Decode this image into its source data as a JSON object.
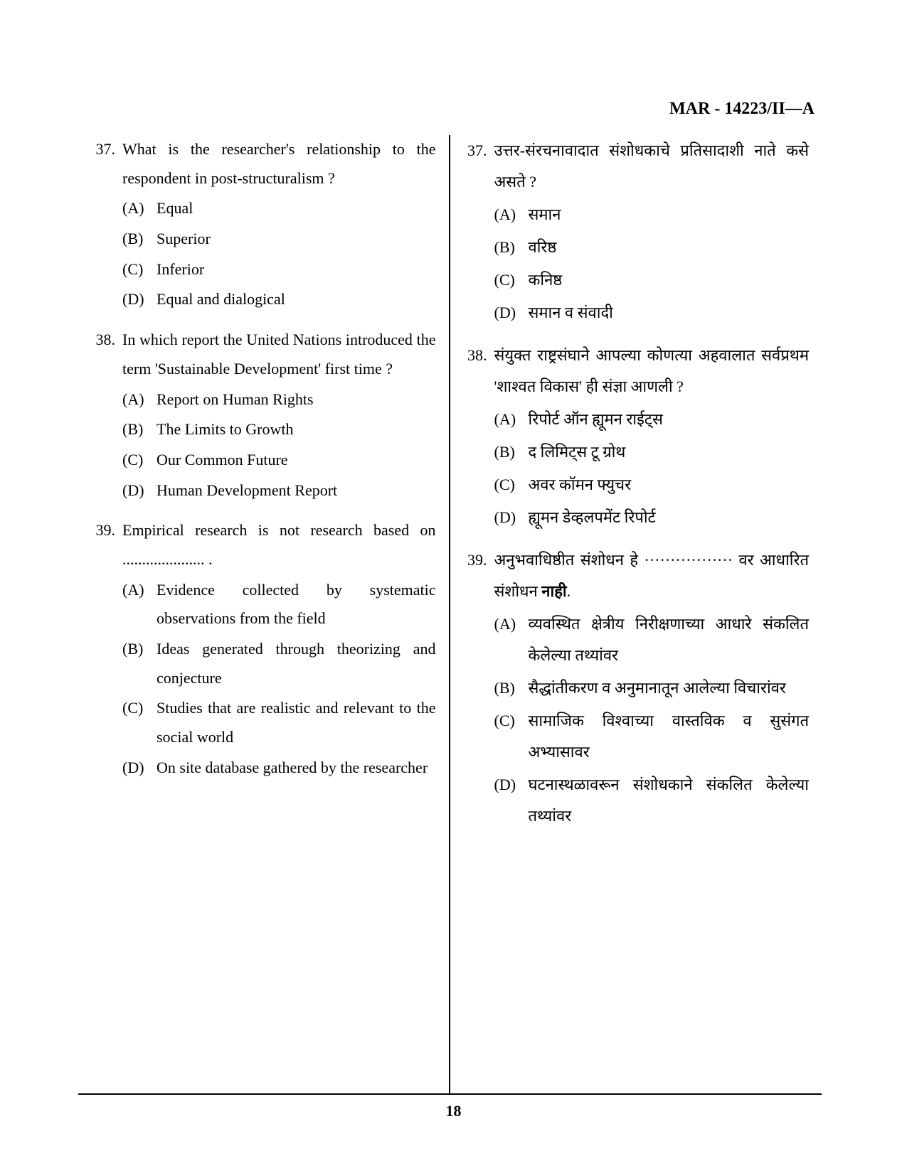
{
  "header_code": "MAR - 14223/II—A",
  "page_number": "18",
  "left_column": {
    "questions": [
      {
        "number": "37.",
        "text": "What is the researcher's relationship to the respondent in post-structuralism ?",
        "options": [
          {
            "label": "(A)",
            "text": "Equal"
          },
          {
            "label": "(B)",
            "text": "Superior"
          },
          {
            "label": "(C)",
            "text": "Inferior"
          },
          {
            "label": "(D)",
            "text": "Equal and dialogical"
          }
        ]
      },
      {
        "number": "38.",
        "text": "In which report the United Nations introduced the term 'Sustainable Development' first time ?",
        "options": [
          {
            "label": "(A)",
            "text": "Report on Human Rights"
          },
          {
            "label": "(B)",
            "text": "The Limits to Growth"
          },
          {
            "label": "(C)",
            "text": "Our Common Future"
          },
          {
            "label": "(D)",
            "text": "Human Development Report"
          }
        ]
      },
      {
        "number": "39.",
        "text_pre": "Empirical research is not research based on",
        "text_post": ".",
        "has_blank": true,
        "options": [
          {
            "label": "(A)",
            "text": "Evidence collected by systematic observations from the field"
          },
          {
            "label": "(B)",
            "text": "Ideas generated through theorizing and conjecture"
          },
          {
            "label": "(C)",
            "text": "Studies that are realistic and relevant to the social world"
          },
          {
            "label": "(D)",
            "text": "On site database gathered by the researcher"
          }
        ]
      }
    ]
  },
  "right_column": {
    "questions": [
      {
        "number": "37.",
        "text": "उत्तर-संरचनावादात संशोधकाचे प्रतिसादाशी नाते कसे असते ?",
        "options": [
          {
            "label": "(A)",
            "text": "समान"
          },
          {
            "label": "(B)",
            "text": "वरिष्ठ"
          },
          {
            "label": "(C)",
            "text": "कनिष्ठ"
          },
          {
            "label": "(D)",
            "text": "समान व संवादी"
          }
        ]
      },
      {
        "number": "38.",
        "text": "संयुक्त राष्ट्रसंघाने आपल्या कोणत्या अहवालात सर्वप्रथम 'शाश्वत विकास' ही संज्ञा आणली ?",
        "options": [
          {
            "label": "(A)",
            "text": "रिपोर्ट ऑन ह्यूमन राईट्स"
          },
          {
            "label": "(B)",
            "text": "द लिमिट्स टू ग्रोथ"
          },
          {
            "label": "(C)",
            "text": "अवर कॉमन फ्युचर"
          },
          {
            "label": "(D)",
            "text": "ह्यूमन डेव्हलपमेंट रिपोर्ट"
          }
        ]
      },
      {
        "number": "39.",
        "text_pre": "अनुभवाधिष्ठीत संशोधन हे",
        "text_mid": " ················· ",
        "text_post1": "वर आधारित संशोधन ",
        "bold_word": "नाही",
        "text_post2": ".",
        "has_blank_complex": true,
        "options": [
          {
            "label": "(A)",
            "text": "व्यवस्थित क्षेत्रीय निरीक्षणाच्या आधारे संकलित केलेल्या तथ्यांवर"
          },
          {
            "label": "(B)",
            "text": "सैद्धांतीकरण व अनुमानातून आलेल्या विचारांवर"
          },
          {
            "label": "(C)",
            "text": "सामाजिक विश्वाच्या वास्तविक व सुसंगत अभ्यासावर"
          },
          {
            "label": "(D)",
            "text": "घटनास्थळावरून संशोधकाने संकलित केलेल्या तथ्यांवर"
          }
        ]
      }
    ]
  }
}
